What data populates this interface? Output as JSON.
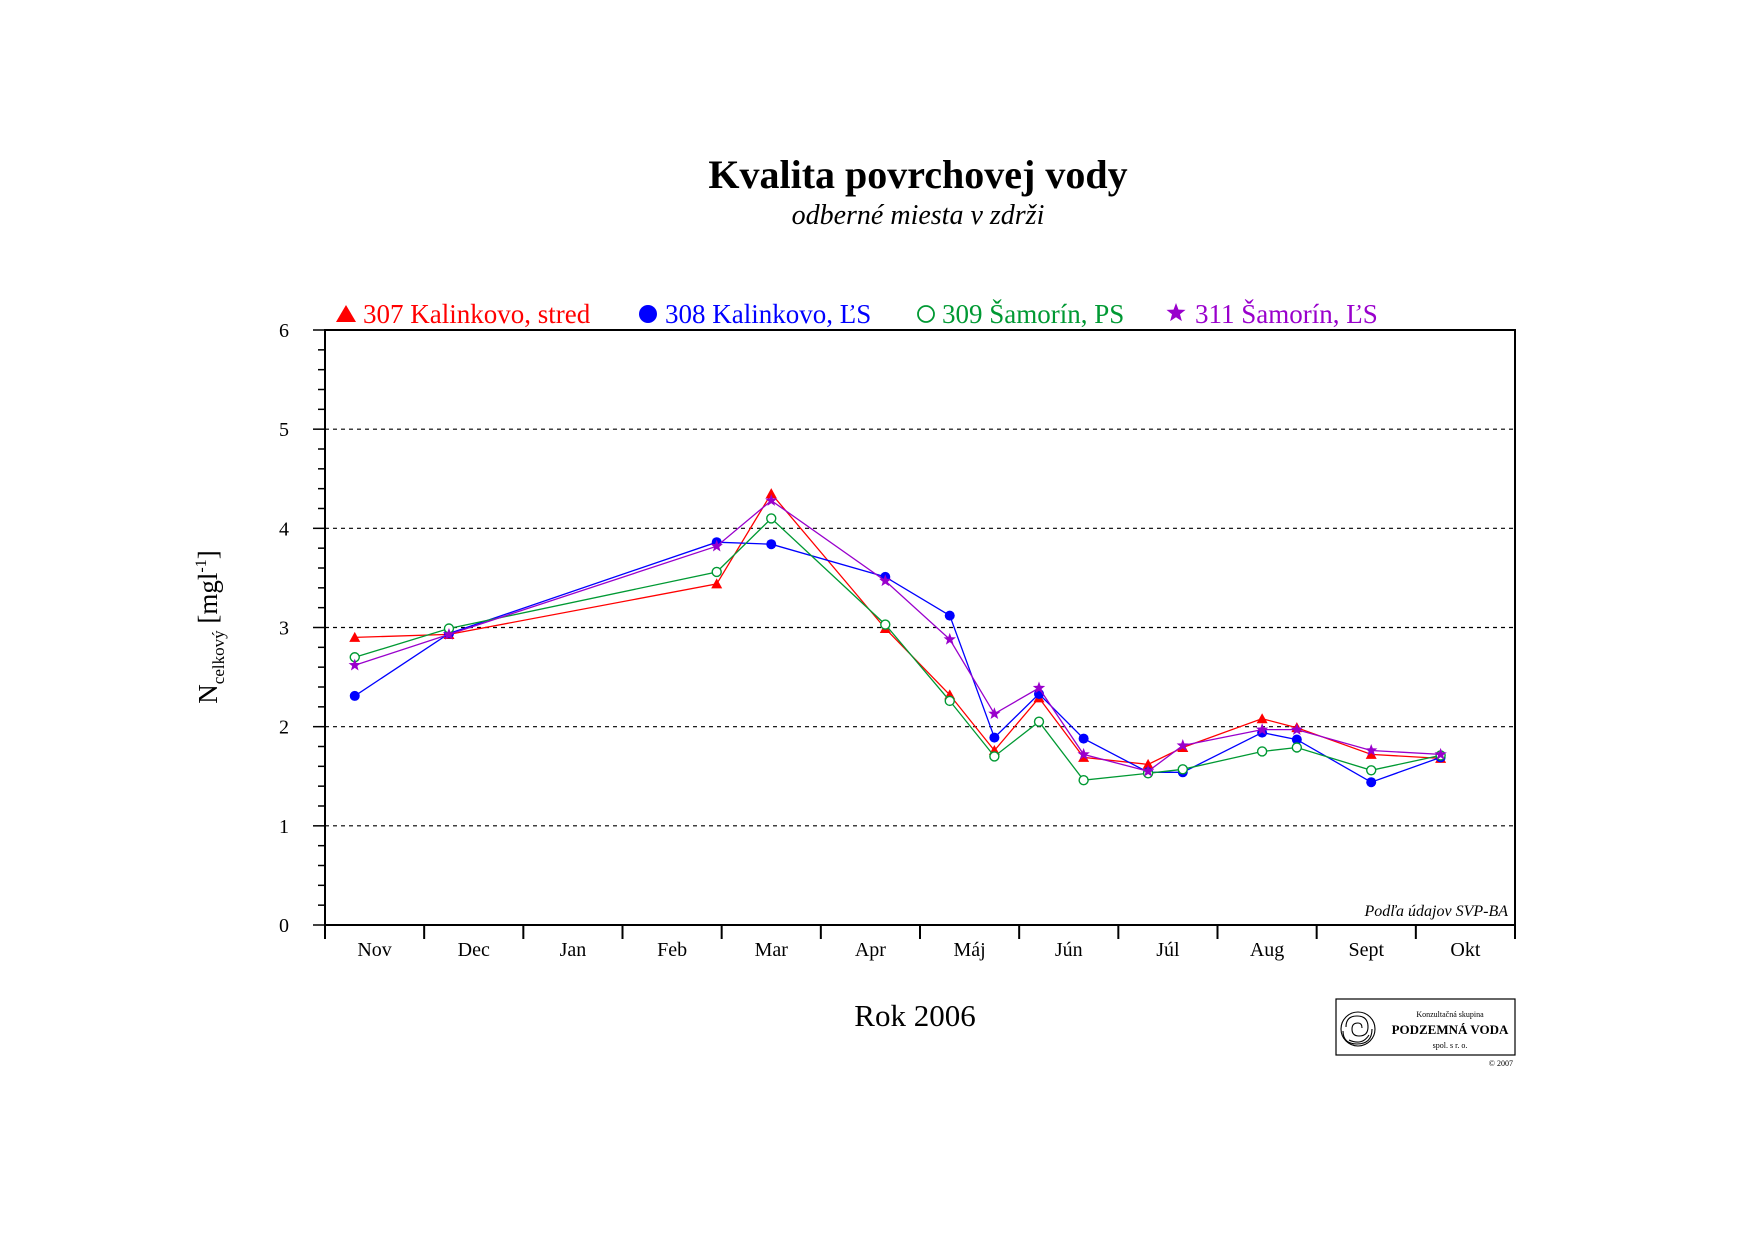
{
  "chart_data": {
    "type": "line",
    "title": "Kvalita povrchovej vody",
    "subtitle": "odberné miesta v zdrži",
    "xlabel": "Rok 2006",
    "ylabel_main": "N",
    "ylabel_sub": "celkový",
    "ylabel_unit_open": " [mgl",
    "ylabel_unit_sup": "-1",
    "ylabel_unit_close": "]",
    "ylim": [
      0,
      6
    ],
    "yticks": [
      "0",
      "1",
      "2",
      "3",
      "4",
      "5",
      "6"
    ],
    "grid": "horizontal dashed at integer values",
    "legend_position": "top",
    "months": [
      "Nov",
      "Dec",
      "Jan",
      "Feb",
      "Mar",
      "Apr",
      "Máj",
      "Jún",
      "Júl",
      "Aug",
      "Sept",
      "Okt"
    ],
    "x_domain": [
      0,
      12
    ],
    "series": [
      {
        "name": "307 Kalinkovo, stred",
        "color": "#ff0000",
        "marker": "triangle",
        "x": [
          0.3,
          1.25,
          3.95,
          4.5,
          5.65,
          6.3,
          6.75,
          7.2,
          7.65,
          8.3,
          8.65,
          9.45,
          9.8,
          10.55,
          11.25
        ],
        "y": [
          2.9,
          2.93,
          3.44,
          4.35,
          2.99,
          2.32,
          1.76,
          2.29,
          1.69,
          1.62,
          1.79,
          2.08,
          1.99,
          1.72,
          1.68
        ]
      },
      {
        "name": "308 Kalinkovo, ĽS",
        "color": "#0000ff",
        "marker": "circle-filled",
        "x": [
          0.3,
          1.25,
          3.95,
          4.5,
          5.65,
          6.3,
          6.75,
          7.2,
          7.65,
          8.3,
          8.65,
          9.45,
          9.8,
          10.55,
          11.25
        ],
        "y": [
          2.31,
          2.94,
          3.86,
          3.84,
          3.51,
          3.12,
          1.89,
          2.33,
          1.88,
          1.54,
          1.54,
          1.94,
          1.87,
          1.44,
          1.69
        ]
      },
      {
        "name": "309 Šamorín, PS",
        "color": "#009933",
        "marker": "circle-open",
        "x": [
          0.3,
          1.25,
          3.95,
          4.5,
          5.65,
          6.3,
          6.75,
          7.2,
          7.65,
          8.3,
          8.65,
          9.45,
          9.8,
          10.55,
          11.25
        ],
        "y": [
          2.7,
          2.99,
          3.56,
          4.1,
          3.03,
          2.26,
          1.7,
          2.05,
          1.46,
          1.53,
          1.57,
          1.75,
          1.79,
          1.56,
          1.71
        ]
      },
      {
        "name": "311 Šamorín, ĽS",
        "color": "#9900cc",
        "marker": "star",
        "x": [
          0.3,
          1.25,
          3.95,
          4.5,
          5.65,
          6.3,
          6.75,
          7.2,
          7.65,
          8.3,
          8.65,
          9.45,
          9.8,
          10.55,
          11.25
        ],
        "y": [
          2.62,
          2.93,
          3.82,
          4.28,
          3.47,
          2.88,
          2.13,
          2.39,
          1.72,
          1.55,
          1.81,
          1.97,
          1.97,
          1.76,
          1.72
        ]
      }
    ],
    "source_note": "Podľa údajov SVP-BA"
  },
  "logo": {
    "line1": "Konzultačná skupina",
    "line2": "PODZEMNÁ VODA",
    "line3": "spol. s r. o.",
    "copyright": "© 2007"
  }
}
